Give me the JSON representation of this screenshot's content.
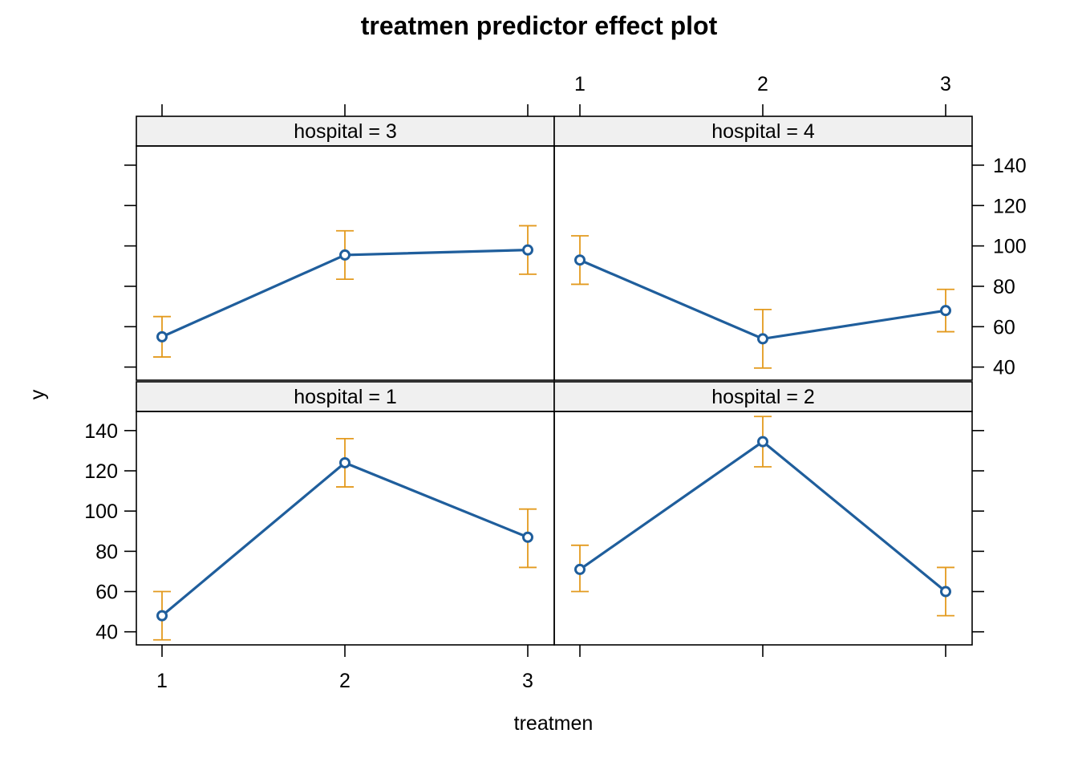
{
  "chart_data": {
    "type": "line",
    "title": "treatmen predictor effect plot",
    "xlabel": "treatmen",
    "ylabel": "y",
    "x_ticks": [
      "1",
      "2",
      "3"
    ],
    "y_ticks": [
      40,
      60,
      80,
      100,
      120,
      140
    ],
    "ylim": [
      33.5,
      149.5
    ],
    "colors": {
      "line": "#1f5e9c",
      "ci": "#e39a1e",
      "strip": "#f0f0f0"
    },
    "panels": [
      {
        "strip": "hospital = 1",
        "x": [
          "1",
          "2",
          "3"
        ],
        "fit": [
          48,
          124,
          87
        ],
        "lower": [
          36,
          112,
          72
        ],
        "upper": [
          60,
          136,
          101
        ]
      },
      {
        "strip": "hospital = 2",
        "x": [
          "1",
          "2",
          "3"
        ],
        "fit": [
          71,
          134.5,
          60
        ],
        "lower": [
          60,
          122,
          48
        ],
        "upper": [
          83,
          147,
          72
        ]
      },
      {
        "strip": "hospital = 3",
        "x": [
          "1",
          "2",
          "3"
        ],
        "fit": [
          55,
          95.5,
          98
        ],
        "lower": [
          45,
          83.5,
          86
        ],
        "upper": [
          65,
          107.5,
          110
        ]
      },
      {
        "strip": "hospital = 4",
        "x": [
          "1",
          "2",
          "3"
        ],
        "fit": [
          93,
          54,
          68
        ],
        "lower": [
          81,
          39.5,
          57.5
        ],
        "upper": [
          105,
          68.5,
          78.5
        ]
      }
    ]
  }
}
